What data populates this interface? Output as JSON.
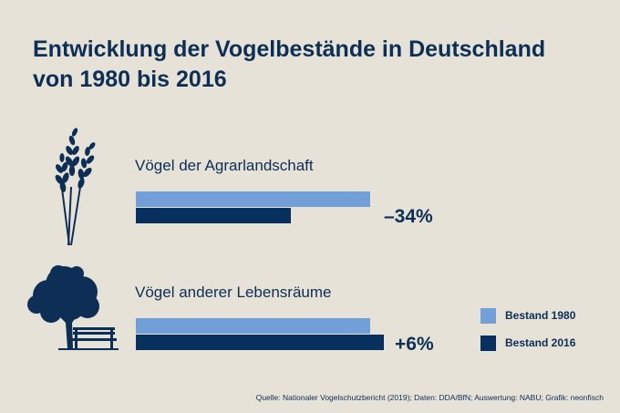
{
  "title_line1": "Entwicklung der Vogelbestände in Deutschland",
  "title_line2": "von 1980 bis 2016",
  "source": "Quelle: Nationaler Vogelschutzbericht (2019); Daten: DDA/BfN; Auswertung: NABU; Grafik: neonfisch",
  "colors": {
    "background": "#e6e2d7",
    "bar_1980": "#739fd8",
    "bar_2016": "#07305e",
    "text": "#0d2e55"
  },
  "icons": [
    "wheat-icon",
    "tree-bench-icon"
  ],
  "chart_data": {
    "type": "bar",
    "orientation": "horizontal",
    "categories": [
      "Vögel der Agrarlandschaft",
      "Vögel anderer Lebensräume"
    ],
    "series": [
      {
        "name": "Bestand 1980",
        "values": [
          100,
          100
        ]
      },
      {
        "name": "Bestand 2016",
        "values": [
          66,
          106
        ]
      }
    ],
    "changes": [
      "–34%",
      "+6%"
    ],
    "legend": {
      "position": "bottom-right",
      "entries": [
        "Bestand 1980",
        "Bestand 2016"
      ]
    },
    "grid": false
  }
}
